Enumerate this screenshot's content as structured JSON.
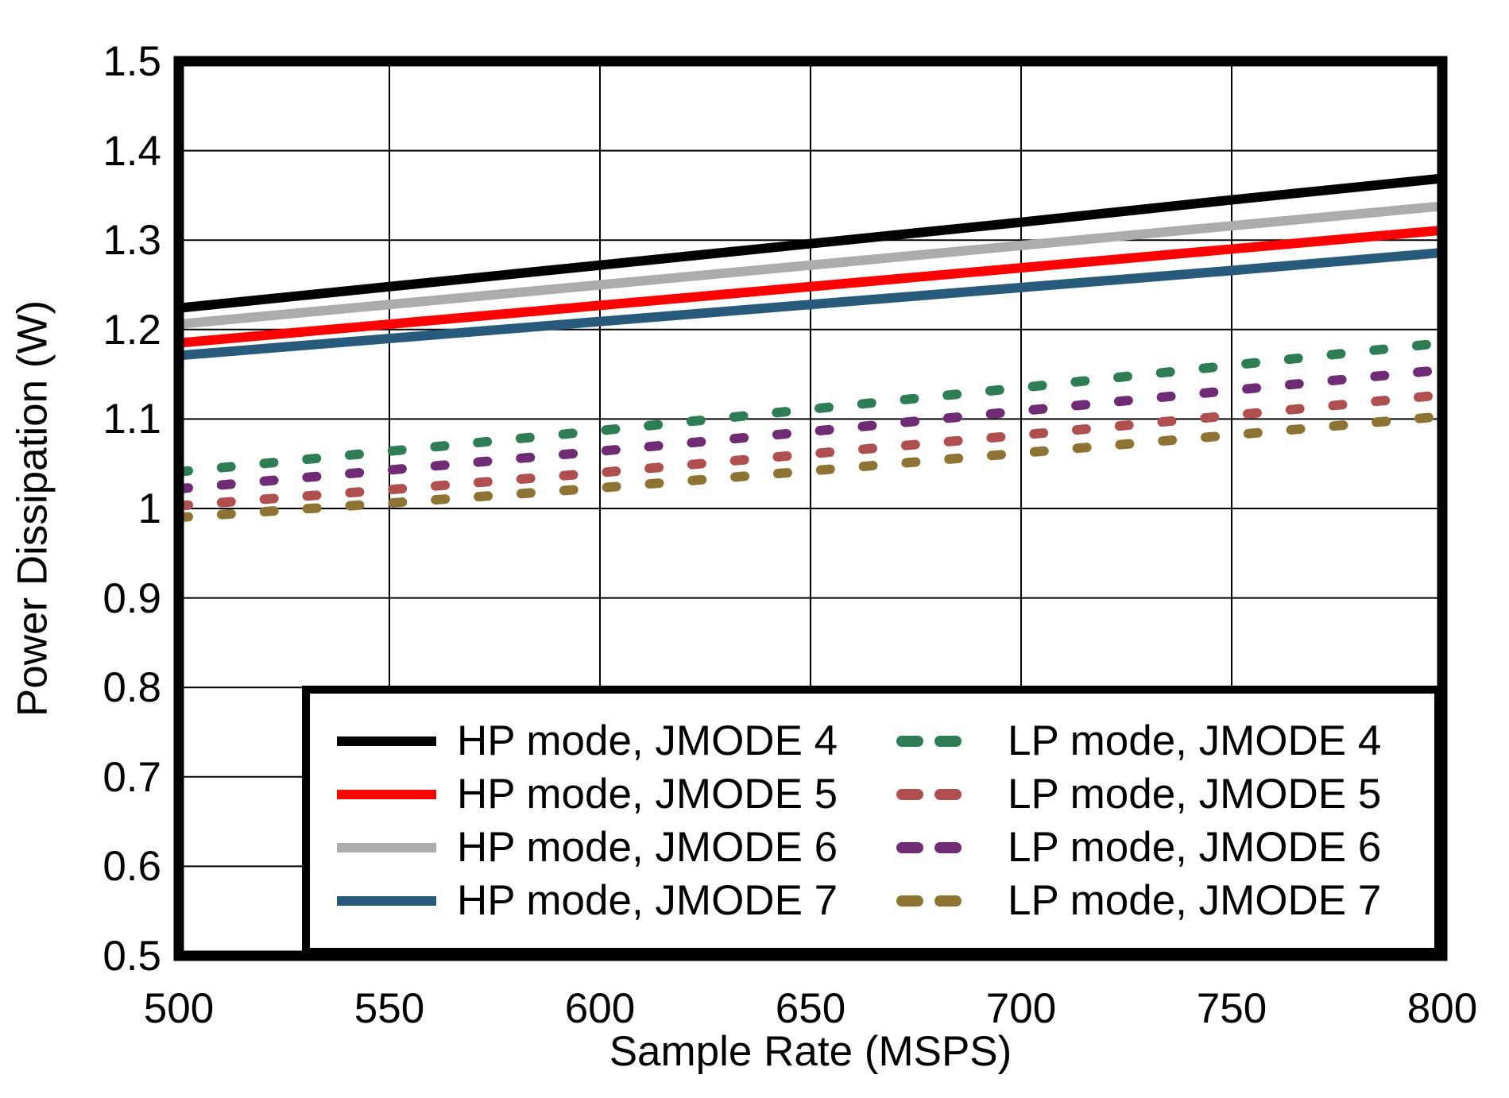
{
  "chart_data": {
    "type": "line",
    "xlabel": "Sample Rate (MSPS)",
    "ylabel": "Power Dissipation (W)",
    "xlim": [
      500,
      800
    ],
    "ylim": [
      0.5,
      1.5
    ],
    "x_ticks": [
      "500",
      "550",
      "600",
      "650",
      "700",
      "750",
      "800"
    ],
    "y_ticks": [
      "0.5",
      "0.6",
      "0.7",
      "0.8",
      "0.9",
      "1",
      "1.1",
      "1.2",
      "1.3",
      "1.4",
      "1.5"
    ],
    "grid": true,
    "legend_position": "inside bottom, two columns",
    "x": [
      500,
      550,
      600,
      650,
      700,
      750,
      800
    ],
    "series": [
      {
        "name": "HP mode, JMODE 4",
        "color": "#000000",
        "style": "solid",
        "values": [
          1.224,
          1.248,
          1.272,
          1.296,
          1.32,
          1.345,
          1.369
        ]
      },
      {
        "name": "HP mode, JMODE 5",
        "color": "#FF0000",
        "style": "solid",
        "values": [
          1.185,
          1.206,
          1.227,
          1.248,
          1.269,
          1.29,
          1.311
        ]
      },
      {
        "name": "HP mode, JMODE 6",
        "color": "#ACACAC",
        "style": "solid",
        "values": [
          1.206,
          1.228,
          1.25,
          1.272,
          1.294,
          1.316,
          1.338
        ]
      },
      {
        "name": "HP mode, JMODE 7",
        "color": "#275A7B",
        "style": "solid",
        "values": [
          1.171,
          1.19,
          1.209,
          1.228,
          1.247,
          1.266,
          1.286
        ]
      },
      {
        "name": "LP mode, JMODE 4",
        "color": "#2E7D55",
        "style": "dashed",
        "values": [
          1.041,
          1.064,
          1.087,
          1.111,
          1.135,
          1.16,
          1.185
        ]
      },
      {
        "name": "LP mode, JMODE 5",
        "color": "#B04F4F",
        "style": "dashed",
        "values": [
          1.003,
          1.021,
          1.04,
          1.061,
          1.082,
          1.104,
          1.127
        ]
      },
      {
        "name": "LP mode, JMODE 6",
        "color": "#6F2B73",
        "style": "dashed",
        "values": [
          1.022,
          1.043,
          1.064,
          1.086,
          1.109,
          1.132,
          1.155
        ]
      },
      {
        "name": "LP mode, JMODE 7",
        "color": "#8E7434",
        "style": "dashed",
        "values": [
          0.99,
          1.006,
          1.023,
          1.042,
          1.062,
          1.082,
          1.103
        ]
      }
    ],
    "colors": {
      "axis": "#000000",
      "grid": "#000000",
      "background": "#FFFFFF"
    }
  }
}
